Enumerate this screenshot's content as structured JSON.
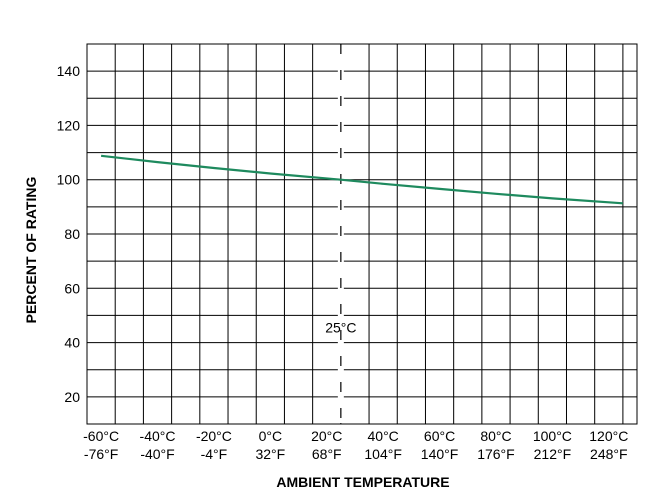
{
  "chart_data": {
    "type": "line",
    "xlabel": "AMBIENT TEMPERATURE",
    "ylabel": "PERCENT OF RATING",
    "xlim": [
      -65,
      130
    ],
    "ylim": [
      10,
      150
    ],
    "y_ticks": [
      20,
      40,
      60,
      80,
      100,
      120,
      140
    ],
    "x_ticks": [
      {
        "value": -60,
        "c": "-60°C",
        "f": "-76°F"
      },
      {
        "value": -40,
        "c": "-40°C",
        "f": "-40°F"
      },
      {
        "value": -20,
        "c": "-20°C",
        "f": "-4°F"
      },
      {
        "value": 0,
        "c": "0°C",
        "f": "32°F"
      },
      {
        "value": 20,
        "c": "20°C",
        "f": "68°F"
      },
      {
        "value": 40,
        "c": "40°C",
        "f": "104°F"
      },
      {
        "value": 60,
        "c": "60°C",
        "f": "140°F"
      },
      {
        "value": 80,
        "c": "80°C",
        "f": "176°F"
      },
      {
        "value": 100,
        "c": "100°C",
        "f": "212°F"
      },
      {
        "value": 120,
        "c": "120°C",
        "f": "248°F"
      }
    ],
    "grid": true,
    "series": [
      {
        "color": "#1e8a5e",
        "x": [
          -60,
          -40,
          -20,
          0,
          25,
          40,
          60,
          80,
          100,
          125
        ],
        "y": [
          108.8,
          106.5,
          104.3,
          102.3,
          100,
          98.5,
          96.6,
          94.8,
          93.1,
          91.3
        ]
      }
    ],
    "reference": {
      "x": 25,
      "label": "25°C"
    }
  }
}
